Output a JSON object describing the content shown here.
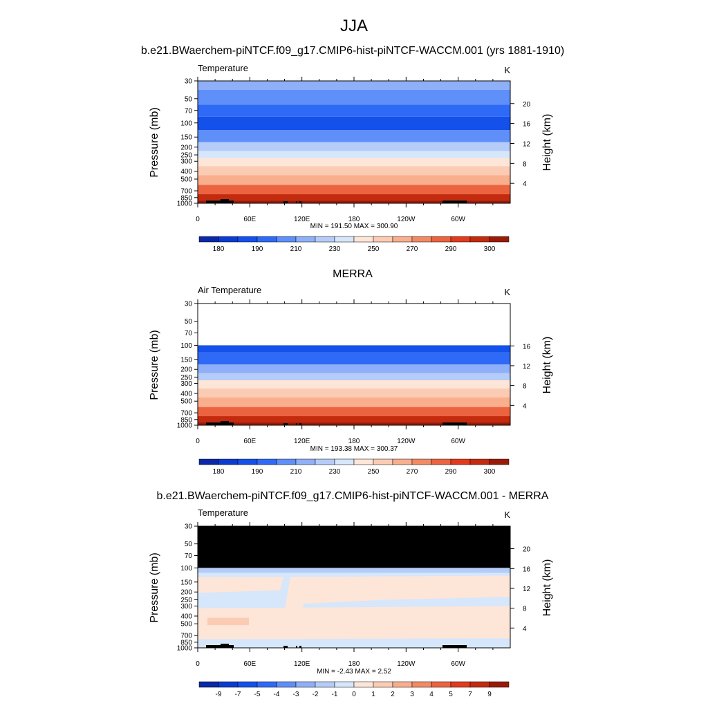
{
  "title": "JJA",
  "colors": {
    "ncl_blue_red": [
      "#000080",
      "#0a28a8",
      "#0b3bd0",
      "#1450ea",
      "#2e6af5",
      "#5f8ff8",
      "#8fb0f8",
      "#b5ccf9",
      "#d6e6fb",
      "#fde6d8",
      "#fbcbb3",
      "#f9ae8e",
      "#f28a64",
      "#ec6340",
      "#e23a1a",
      "#c42a0e",
      "#9a1a08",
      "#6e0a05"
    ],
    "topography": "#000000",
    "masked": "#000000"
  },
  "chart_data": [
    {
      "type": "contour",
      "case_title": "b.e21.BWaerchem-piNTCF.f09_g17.CMIP6-hist-piNTCF-WACCM.001 (yrs 1881-1910)",
      "left_label": "Temperature",
      "units": "K",
      "ylabel": "Pressure (mb)",
      "ylabel_right": "Height (km)",
      "pressure_ticks": [
        "30",
        "50",
        "70",
        "100",
        "150",
        "200",
        "250",
        "300",
        "400",
        "500",
        "700",
        "850",
        "1000"
      ],
      "height_ticks": [
        "4",
        "8",
        "12",
        "16",
        "20"
      ],
      "lon_ticks": [
        "0",
        "60E",
        "120E",
        "180",
        "120W",
        "60W"
      ],
      "stats": "MIN = 191.50  MAX = 300.90",
      "min": 191.5,
      "max": 300.9,
      "colorbar_labels": [
        "180",
        "190",
        "210",
        "230",
        "250",
        "270",
        "290",
        "300"
      ],
      "profile_pressure": [
        30,
        50,
        70,
        100,
        150,
        200,
        250,
        300,
        400,
        500,
        700,
        850,
        1000
      ],
      "profile_color_index": [
        6,
        5,
        4,
        3,
        5,
        7,
        8,
        9,
        10,
        11,
        13,
        15,
        16
      ]
    },
    {
      "type": "contour",
      "case_title": "MERRA",
      "left_label": "Air Temperature",
      "units": "K",
      "ylabel": "Pressure (mb)",
      "ylabel_right": "Height (km)",
      "pressure_ticks": [
        "30",
        "50",
        "70",
        "100",
        "150",
        "200",
        "250",
        "300",
        "400",
        "500",
        "700",
        "850",
        "1000"
      ],
      "height_ticks": [
        "4",
        "8",
        "12",
        "16"
      ],
      "lon_ticks": [
        "0",
        "60E",
        "120E",
        "180",
        "120W",
        "60W"
      ],
      "stats": "MIN = 193.38  MAX = 300.37",
      "min": 193.38,
      "max": 300.37,
      "data_top_pressure": 100,
      "colorbar_labels": [
        "180",
        "190",
        "210",
        "230",
        "250",
        "270",
        "290",
        "300"
      ],
      "profile_pressure": [
        100,
        150,
        200,
        250,
        300,
        400,
        500,
        700,
        850,
        1000
      ],
      "profile_color_index": [
        3,
        4,
        6,
        7,
        9,
        10,
        11,
        13,
        15,
        16
      ]
    },
    {
      "type": "contour",
      "case_title": "b.e21.BWaerchem-piNTCF.f09_g17.CMIP6-hist-piNTCF-WACCM.001 - MERRA",
      "left_label": "Temperature",
      "units": "K",
      "ylabel": "Pressure (mb)",
      "ylabel_right": "Height (km)",
      "pressure_ticks": [
        "30",
        "50",
        "70",
        "100",
        "150",
        "200",
        "250",
        "300",
        "400",
        "500",
        "700",
        "850",
        "1000"
      ],
      "height_ticks": [
        "4",
        "8",
        "12",
        "16",
        "20"
      ],
      "lon_ticks": [
        "0",
        "60E",
        "120E",
        "180",
        "120W",
        "60W"
      ],
      "stats": "MIN =  -2.43  MAX =   2.52",
      "min": -2.43,
      "max": 2.52,
      "masked_above_pressure": 100,
      "colorbar_labels": [
        "-9",
        "-7",
        "-5",
        "-4",
        "-3",
        "-2",
        "-1",
        "0",
        "1",
        "2",
        "3",
        "4",
        "5",
        "7",
        "9"
      ]
    }
  ]
}
